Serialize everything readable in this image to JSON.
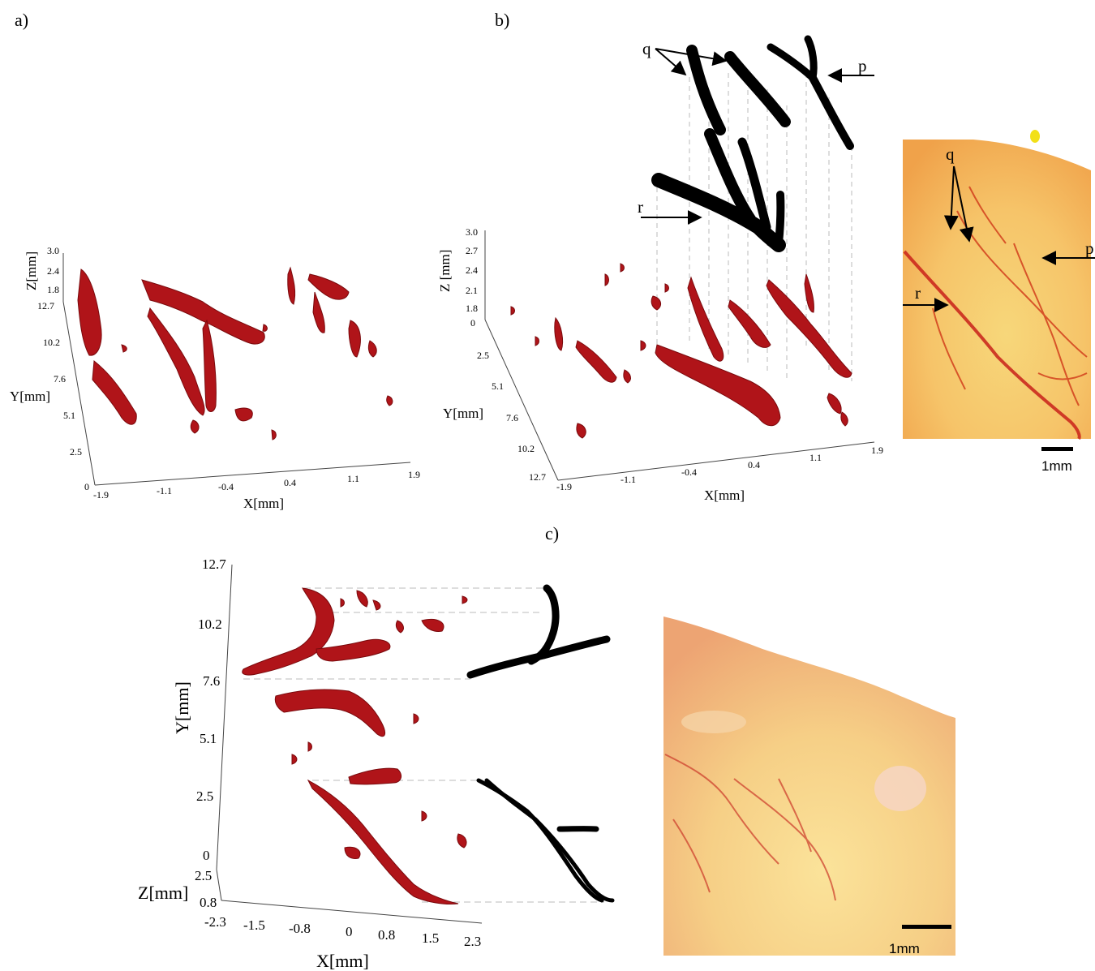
{
  "panels": {
    "a": {
      "label": "a)",
      "z_axis": {
        "title": "Z[mm]",
        "ticks": [
          "3.0",
          "2.4",
          "1.8"
        ]
      },
      "y_axis": {
        "title": "Y[mm]",
        "ticks": [
          "12.7",
          "10.2",
          "7.6",
          "5.1",
          "2.5",
          "0"
        ]
      },
      "x_axis": {
        "title": "X[mm]",
        "ticks": [
          "-1.9",
          "-1.1",
          "-0.4",
          "0.4",
          "1.1",
          "1.9"
        ]
      }
    },
    "b": {
      "label": "b)",
      "z_axis": {
        "title": "Z [mm]",
        "ticks": [
          "3.0",
          "2.7",
          "2.4",
          "2.1",
          "1.8",
          "0"
        ]
      },
      "y_axis": {
        "title": "Y[mm]",
        "ticks": [
          "2.5",
          "5.1",
          "7.6",
          "10.2",
          "12.7"
        ]
      },
      "x_axis": {
        "title": "X[mm]",
        "ticks": [
          "-1.9",
          "-1.1",
          "-0.4",
          "0.4",
          "1.1",
          "1.9"
        ]
      },
      "annotations": {
        "q": "q",
        "p": "p",
        "r": "r"
      },
      "photo": {
        "annotations": {
          "q": "q",
          "p": "p",
          "r": "r"
        },
        "scale_bar": "1mm"
      }
    },
    "c": {
      "label": "c)",
      "y_axis": {
        "title": "Y[mm]",
        "ticks": [
          "12.7",
          "10.2",
          "7.6",
          "5.1",
          "2.5",
          "0"
        ]
      },
      "z_axis": {
        "title": "Z[mm]",
        "ticks": [
          "2.5",
          "0.8"
        ]
      },
      "x_axis": {
        "title": "X[mm]",
        "ticks": [
          "-2.3",
          "-1.5",
          "-0.8",
          "0",
          "0.8",
          "1.5",
          "2.3"
        ]
      },
      "photo": {
        "scale_bar": "1mm"
      }
    }
  }
}
